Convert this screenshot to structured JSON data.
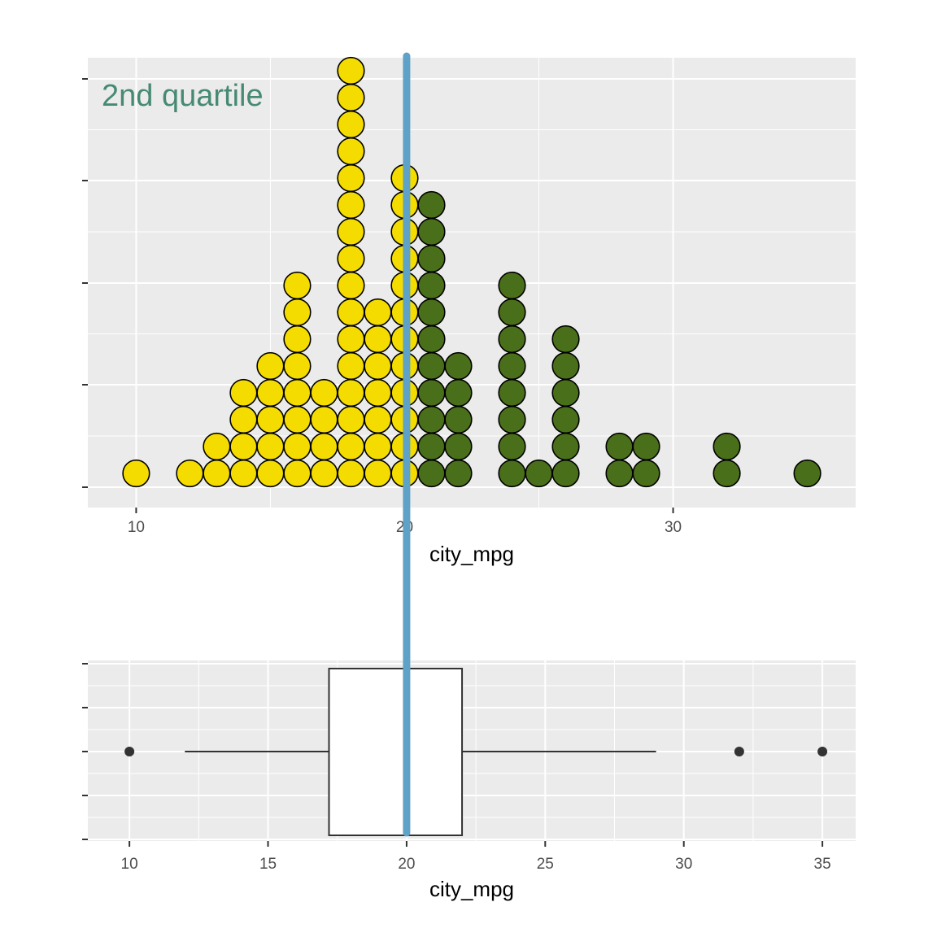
{
  "chart_data": [
    {
      "type": "dotplot",
      "xlabel": "city_mpg",
      "ylabel": "",
      "xlim": [
        8.2,
        36.8
      ],
      "xticks": [
        10,
        20,
        30
      ],
      "annotation": "2nd quartile",
      "reference_line": 20,
      "colors": {
        "low": "#f5dc00",
        "high": "#4a6f1a",
        "annotation": "#478a73",
        "reference_line": "#5fa2c8",
        "panel": "#ebebeb",
        "grid": "#ffffff"
      },
      "split_value": 20.5,
      "stacks": [
        {
          "x": 10,
          "count": 1
        },
        {
          "x": 12,
          "count": 1
        },
        {
          "x": 13,
          "count": 2
        },
        {
          "x": 14,
          "count": 4
        },
        {
          "x": 15,
          "count": 5
        },
        {
          "x": 16,
          "count": 8
        },
        {
          "x": 17,
          "count": 4
        },
        {
          "x": 18,
          "count": 16
        },
        {
          "x": 19,
          "count": 7
        },
        {
          "x": 20,
          "count": 12
        },
        {
          "x": 21,
          "count": 11
        },
        {
          "x": 22,
          "count": 5
        },
        {
          "x": 24,
          "count": 8
        },
        {
          "x": 25,
          "count": 1
        },
        {
          "x": 26,
          "count": 6
        },
        {
          "x": 28,
          "count": 2
        },
        {
          "x": 29,
          "count": 2
        },
        {
          "x": 32,
          "count": 2
        },
        {
          "x": 35,
          "count": 1
        }
      ]
    },
    {
      "type": "boxplot",
      "xlabel": "city_mpg",
      "xlim": [
        8.5,
        36.2
      ],
      "xticks": [
        10,
        15,
        20,
        25,
        30,
        35
      ],
      "reference_line": 20,
      "box": {
        "q1": 17.2,
        "median": 20,
        "q3": 22,
        "whisker_low": 12,
        "whisker_high": 29
      },
      "outliers": [
        10,
        32,
        35
      ]
    }
  ]
}
